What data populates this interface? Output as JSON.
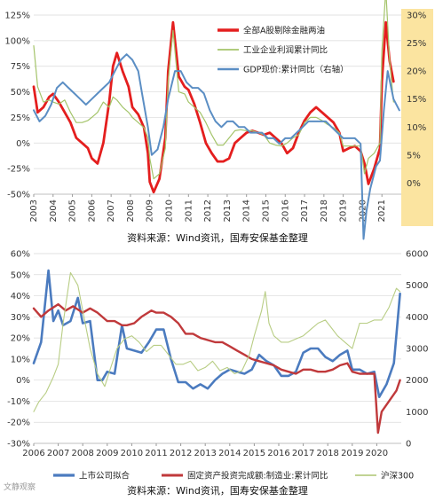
{
  "chart_data": [
    {
      "type": "line",
      "x_labels": [
        "2003",
        "2004",
        "2005",
        "2006",
        "2007",
        "2008",
        "2009",
        "2010",
        "2011",
        "2012",
        "2013",
        "2014",
        "2015",
        "2016",
        "2017",
        "2018",
        "2019",
        "2020",
        "2021"
      ],
      "left_axis": {
        "ticks": [
          "-50%",
          "-25%",
          "0%",
          "25%",
          "50%",
          "75%",
          "100%",
          "125%"
        ],
        "ylim": [
          -50,
          125
        ]
      },
      "right_axis": {
        "ticks": [
          "0%",
          "5%",
          "10%",
          "15%",
          "20%",
          "25%",
          "30%"
        ],
        "ylim": [
          -2,
          30
        ]
      },
      "legend": [
        "全部A股剔除金融两油",
        "工业企业利润累计同比",
        "GDP现价:累计同比（右轴）"
      ],
      "legend_placement": "top-right",
      "highlight_region": "2021-2022",
      "series": [
        {
          "name": "全部A股剔除金融两油",
          "axis": "left",
          "color": "#e41e1e",
          "x": [
            2003.0,
            2003.2,
            2003.5,
            2003.8,
            2004.0,
            2004.3,
            2004.6,
            2004.9,
            2005.2,
            2005.5,
            2005.8,
            2006.0,
            2006.3,
            2006.6,
            2006.9,
            2007.1,
            2007.3,
            2007.6,
            2007.9,
            2008.1,
            2008.4,
            2008.7,
            2008.9,
            2009.0,
            2009.2,
            2009.5,
            2009.8,
            2009.95,
            2010.2,
            2010.5,
            2010.8,
            2011.0,
            2011.3,
            2011.6,
            2011.9,
            2012.2,
            2012.5,
            2012.8,
            2013.1,
            2013.4,
            2013.7,
            2014.0,
            2014.3,
            2014.6,
            2014.9,
            2015.2,
            2015.5,
            2015.8,
            2016.1,
            2016.4,
            2016.7,
            2017.0,
            2017.3,
            2017.6,
            2017.9,
            2018.2,
            2018.5,
            2018.8,
            2019.0,
            2019.3,
            2019.6,
            2019.9,
            2020.1,
            2020.3,
            2020.6,
            2020.9,
            2021.0,
            2021.2,
            2021.4,
            2021.6
          ],
          "y": [
            55,
            30,
            35,
            45,
            48,
            40,
            30,
            20,
            5,
            0,
            -5,
            -15,
            -20,
            0,
            40,
            75,
            88,
            70,
            55,
            35,
            28,
            15,
            -10,
            -38,
            -48,
            -35,
            5,
            70,
            118,
            65,
            55,
            52,
            38,
            20,
            0,
            -10,
            -18,
            -18,
            -15,
            0,
            5,
            10,
            12,
            10,
            8,
            10,
            5,
            0,
            -10,
            -5,
            10,
            22,
            30,
            35,
            30,
            25,
            20,
            10,
            -8,
            -5,
            -3,
            -8,
            -20,
            -40,
            -25,
            -5,
            60,
            118,
            80,
            60
          ]
        },
        {
          "name": "工业企业利润累计同比",
          "axis": "left",
          "color": "#a4c46a",
          "x": [
            2003.0,
            2003.2,
            2003.5,
            2003.8,
            2004.0,
            2004.3,
            2004.6,
            2004.9,
            2005.2,
            2005.5,
            2005.8,
            2006.0,
            2006.3,
            2006.6,
            2006.9,
            2007.1,
            2007.3,
            2007.6,
            2007.9,
            2008.1,
            2008.4,
            2008.7,
            2008.9,
            2009.0,
            2009.2,
            2009.5,
            2009.8,
            2009.95,
            2010.2,
            2010.5,
            2010.8,
            2011.0,
            2011.3,
            2011.6,
            2011.9,
            2012.2,
            2012.5,
            2012.8,
            2013.1,
            2013.4,
            2013.7,
            2014.0,
            2014.3,
            2014.6,
            2014.9,
            2015.2,
            2015.5,
            2015.8,
            2016.1,
            2016.4,
            2016.7,
            2017.0,
            2017.3,
            2017.6,
            2017.9,
            2018.2,
            2018.5,
            2018.8,
            2019.0,
            2019.3,
            2019.6,
            2019.9,
            2020.1,
            2020.3,
            2020.6,
            2020.9,
            2021.0,
            2021.2,
            2021.4,
            2021.6
          ],
          "y": [
            95,
            55,
            40,
            42,
            40,
            38,
            42,
            30,
            20,
            20,
            22,
            25,
            30,
            40,
            35,
            45,
            42,
            35,
            30,
            25,
            20,
            15,
            5,
            -15,
            -35,
            -30,
            -5,
            60,
            110,
            50,
            48,
            40,
            35,
            30,
            20,
            8,
            -2,
            -2,
            5,
            12,
            13,
            12,
            12,
            10,
            8,
            0,
            -2,
            -3,
            0,
            5,
            8,
            20,
            25,
            25,
            22,
            18,
            15,
            10,
            -3,
            -3,
            -3,
            -3,
            -30,
            -15,
            -10,
            0,
            90,
            150,
            80,
            40
          ]
        },
        {
          "name": "GDP现价:累计同比（右轴）",
          "axis": "right",
          "color": "#5b8ec4",
          "x": [
            2003.0,
            2003.3,
            2003.6,
            2003.9,
            2004.2,
            2004.5,
            2004.8,
            2005.1,
            2005.4,
            2005.7,
            2006.0,
            2006.3,
            2006.6,
            2006.9,
            2007.2,
            2007.5,
            2007.8,
            2008.1,
            2008.4,
            2008.6,
            2008.9,
            2009.1,
            2009.4,
            2009.7,
            2009.95,
            2010.3,
            2010.6,
            2010.9,
            2011.2,
            2011.5,
            2011.8,
            2012.1,
            2012.4,
            2012.7,
            2013.0,
            2013.3,
            2013.6,
            2013.9,
            2014.2,
            2014.5,
            2014.8,
            2015.1,
            2015.4,
            2015.7,
            2016.0,
            2016.3,
            2016.6,
            2016.9,
            2017.2,
            2017.5,
            2017.8,
            2018.1,
            2018.4,
            2018.7,
            2019.0,
            2019.3,
            2019.6,
            2019.9,
            2020.05,
            2020.2,
            2020.4,
            2020.7,
            2020.9,
            2021.1,
            2021.3,
            2021.6,
            2021.9
          ],
          "y": [
            13,
            11,
            12,
            14,
            17,
            18,
            17,
            16,
            15,
            14,
            15,
            16,
            17,
            18,
            20,
            22,
            23,
            22,
            20,
            16,
            10,
            5,
            6,
            10,
            15,
            20,
            20,
            18,
            17,
            17,
            16,
            13,
            11,
            10,
            11,
            11,
            10,
            10,
            9,
            9,
            9,
            8,
            8,
            7,
            8,
            8,
            9,
            10,
            11,
            11,
            11,
            11,
            10,
            9,
            8,
            8,
            8,
            7,
            -10,
            -5,
            -1,
            3,
            4,
            13,
            20,
            15,
            13
          ]
        }
      ]
    },
    {
      "type": "line",
      "x_labels": [
        "2006",
        "2007",
        "2008",
        "2009",
        "2010",
        "2011",
        "2012",
        "2013",
        "2014",
        "2015",
        "2016",
        "2017",
        "2018",
        "2019",
        "2020"
      ],
      "left_axis": {
        "ticks": [
          "-30%",
          "-20%",
          "-10%",
          "0%",
          "10%",
          "20%",
          "30%",
          "40%",
          "50%",
          "60%"
        ],
        "ylim": [
          -30,
          60
        ]
      },
      "right_axis": {
        "ticks": [
          "0",
          "1000",
          "2000",
          "3000",
          "4000",
          "5000",
          "6000"
        ],
        "ylim": [
          0,
          6000
        ]
      },
      "legend": [
        "上市公司拟合",
        "固定资产投资完成额:制造业:累计同比",
        "沪深300"
      ],
      "legend_placement": "bottom",
      "series": [
        {
          "name": "上市公司拟合",
          "axis": "left",
          "color": "#4b7bbf",
          "x": [
            2006.0,
            2006.3,
            2006.6,
            2006.8,
            2007.0,
            2007.2,
            2007.5,
            2007.8,
            2008.0,
            2008.3,
            2008.6,
            2008.8,
            2009.0,
            2009.3,
            2009.6,
            2009.8,
            2010.1,
            2010.4,
            2010.7,
            2011.0,
            2011.3,
            2011.6,
            2011.9,
            2012.2,
            2012.5,
            2012.8,
            2013.1,
            2013.4,
            2013.7,
            2014.0,
            2014.3,
            2014.6,
            2014.9,
            2015.2,
            2015.5,
            2015.8,
            2016.1,
            2016.4,
            2016.7,
            2017.0,
            2017.3,
            2017.6,
            2017.9,
            2018.2,
            2018.5,
            2018.8,
            2019.0,
            2019.3,
            2019.6,
            2019.9,
            2020.1,
            2020.4,
            2020.7,
            2020.95
          ],
          "y": [
            8,
            18,
            52,
            28,
            33,
            26,
            28,
            39,
            27,
            28,
            0,
            0,
            4,
            3,
            26,
            15,
            14,
            13,
            18,
            24,
            24,
            10,
            -1,
            -1,
            -4,
            -2,
            -4,
            0,
            3,
            5,
            4,
            3,
            5,
            12,
            9,
            7,
            2,
            2,
            4,
            13,
            15,
            15,
            11,
            9,
            12,
            14,
            5,
            5,
            3,
            4,
            -8,
            -2,
            8,
            41
          ]
        },
        {
          "name": "固定资产投资完成额:制造业:累计同比",
          "axis": "left",
          "color": "#c0393b",
          "x": [
            2006.0,
            2006.3,
            2006.6,
            2007.0,
            2007.3,
            2007.6,
            2008.0,
            2008.3,
            2008.6,
            2009.0,
            2009.3,
            2009.6,
            2009.8,
            2010.1,
            2010.4,
            2010.8,
            2011.0,
            2011.3,
            2011.6,
            2011.9,
            2012.2,
            2012.5,
            2012.8,
            2013.1,
            2013.4,
            2013.7,
            2014.0,
            2014.3,
            2014.6,
            2014.9,
            2015.2,
            2015.5,
            2015.8,
            2016.1,
            2016.4,
            2016.7,
            2017.0,
            2017.3,
            2017.6,
            2017.9,
            2018.2,
            2018.5,
            2018.8,
            2019.0,
            2019.3,
            2019.6,
            2019.9,
            2020.05,
            2020.2,
            2020.5,
            2020.8,
            2020.95
          ],
          "y": [
            34,
            30,
            33,
            36,
            33,
            35,
            32,
            34,
            32,
            28,
            28,
            26,
            26,
            27,
            30,
            33,
            32,
            32,
            30,
            27,
            22,
            22,
            20,
            19,
            18,
            18,
            16,
            14,
            12,
            10,
            9,
            8,
            7,
            5,
            4,
            3,
            5,
            5,
            4,
            4,
            5,
            7,
            8,
            4,
            3,
            3,
            3,
            -25,
            -15,
            -10,
            -5,
            0
          ]
        },
        {
          "name": "沪深300",
          "axis": "right",
          "color": "#b8cd84",
          "x": [
            2006.0,
            2006.2,
            2006.5,
            2006.8,
            2007.0,
            2007.2,
            2007.5,
            2007.8,
            2008.0,
            2008.3,
            2008.6,
            2008.9,
            2009.1,
            2009.4,
            2009.7,
            2010.0,
            2010.3,
            2010.6,
            2010.9,
            2011.2,
            2011.5,
            2011.8,
            2012.1,
            2012.4,
            2012.7,
            2013.0,
            2013.3,
            2013.6,
            2013.9,
            2014.2,
            2014.5,
            2014.8,
            2015.0,
            2015.3,
            2015.45,
            2015.6,
            2015.8,
            2016.1,
            2016.4,
            2016.7,
            2017.0,
            2017.3,
            2017.6,
            2017.9,
            2018.1,
            2018.4,
            2018.7,
            2019.0,
            2019.3,
            2019.6,
            2019.9,
            2020.2,
            2020.5,
            2020.8,
            2020.95
          ],
          "y": [
            1000,
            1300,
            1600,
            2100,
            2500,
            3800,
            5400,
            5000,
            4200,
            3000,
            2200,
            1800,
            2300,
            3000,
            3300,
            3400,
            3200,
            2900,
            3100,
            3100,
            2800,
            2500,
            2500,
            2600,
            2300,
            2400,
            2600,
            2300,
            2400,
            2200,
            2300,
            2800,
            3400,
            4200,
            4800,
            3800,
            3400,
            3200,
            3200,
            3300,
            3400,
            3600,
            3800,
            3900,
            3700,
            3400,
            3200,
            3000,
            3800,
            3800,
            3900,
            3900,
            4300,
            4900,
            4800
          ]
        }
      ]
    }
  ],
  "sources": [
    "资料来源：Wind资讯，国寿安保基金整理",
    "资料来源：Wind资讯，国寿安保基金整理"
  ],
  "watermark": "文静观察"
}
